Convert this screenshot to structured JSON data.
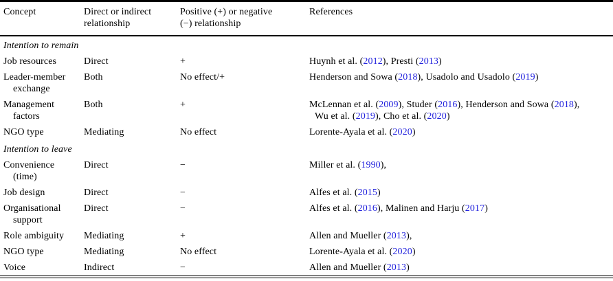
{
  "colors": {
    "reference_year_link": "#2222dd",
    "text": "#000000",
    "rule": "#000000",
    "background": "#ffffff"
  },
  "table": {
    "columns": [
      {
        "label": "Concept"
      },
      {
        "label": "Direct or indirect relationship"
      },
      {
        "label": "Positive (+) or negative (−) relationship"
      },
      {
        "label": "References"
      }
    ],
    "sections": [
      {
        "title": "Intention to remain",
        "rows": [
          {
            "concept": "Job resources",
            "relationship": "Direct",
            "sign": "+",
            "references": "Huynh et al. (2012), Presti (2013)"
          },
          {
            "concept": "Leader-member\nexchange",
            "relationship": "Both",
            "sign": "No effect/+",
            "references": "Henderson and Sowa (2018), Usadolo and Usadolo (2019)"
          },
          {
            "concept": "Management\nfactors",
            "relationship": "Both",
            "sign": "+",
            "references": "McLennan et al. (2009), Studer (2016), Henderson and Sowa (2018),\nWu et al. (2019), Cho et al. (2020)"
          },
          {
            "concept": "NGO type",
            "relationship": "Mediating",
            "sign": "No effect",
            "references": "Lorente-Ayala et al. (2020)"
          }
        ]
      },
      {
        "title": "Intention to leave",
        "rows": [
          {
            "concept": "Convenience\n(time)",
            "relationship": "Direct",
            "sign": "−",
            "references": "Miller et al. (1990),"
          },
          {
            "concept": "Job design",
            "relationship": "Direct",
            "sign": "−",
            "references": "Alfes et al. (2015)"
          },
          {
            "concept": "Organisational\nsupport",
            "relationship": "Direct",
            "sign": "−",
            "references": "Alfes et al. (2016), Malinen and Harju (2017)"
          },
          {
            "concept": "Role ambiguity",
            "relationship": "Mediating",
            "sign": "+",
            "references": "Allen and Mueller (2013),"
          },
          {
            "concept": "NGO type",
            "relationship": "Mediating",
            "sign": "No effect",
            "references": "Lorente-Ayala et al. (2020)"
          },
          {
            "concept": "Voice",
            "relationship": "Indirect",
            "sign": "−",
            "references": "Allen and Mueller (2013)"
          }
        ]
      }
    ]
  }
}
